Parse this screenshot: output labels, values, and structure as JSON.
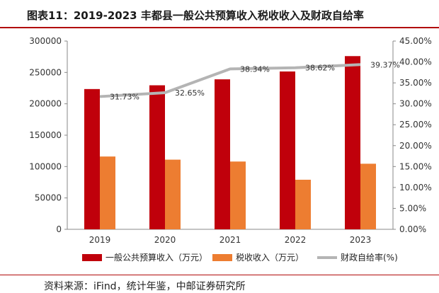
{
  "title": "图表11：2019-2023 丰都县一般公共预算收入税收收入及财政自给率",
  "source": "资料来源：iFind，统计年鉴，中邮证券研究所",
  "colors": {
    "general": "#c0000b",
    "tax": "#ed7d31",
    "ratio": "#b4b4b4",
    "rule": "#b10a0a"
  },
  "chart_data": {
    "type": "bar",
    "categories": [
      "2019",
      "2020",
      "2021",
      "2022",
      "2023"
    ],
    "series": [
      {
        "name": "一般公共预算收入（万元）",
        "kind": "bar",
        "axis": "left",
        "values": [
          223500,
          229500,
          239000,
          251500,
          276000
        ]
      },
      {
        "name": "税收收入（万元）",
        "kind": "bar",
        "axis": "left",
        "values": [
          116000,
          111000,
          108000,
          79000,
          104500
        ]
      },
      {
        "name": "财政自给率(%)",
        "kind": "line",
        "axis": "right",
        "values": [
          31.73,
          32.65,
          38.34,
          38.62,
          39.37
        ],
        "labels": [
          "31.73%",
          "32.65%",
          "38.34%",
          "38.62%",
          "39.37%"
        ]
      }
    ],
    "left_axis": {
      "ylim": [
        0,
        300000
      ],
      "ticks": [
        "0",
        "50000",
        "100000",
        "150000",
        "200000",
        "250000",
        "300000"
      ]
    },
    "right_axis": {
      "ylim": [
        0,
        45
      ],
      "ticks": [
        "0.00%",
        "5.00%",
        "10.00%",
        "15.00%",
        "20.00%",
        "25.00%",
        "30.00%",
        "35.00%",
        "40.00%",
        "45.00%"
      ]
    },
    "legend": [
      "一般公共预算收入（万元）",
      "税收收入（万元）",
      "财政自给率(%)"
    ],
    "legend_position": "bottom",
    "grid": false
  }
}
